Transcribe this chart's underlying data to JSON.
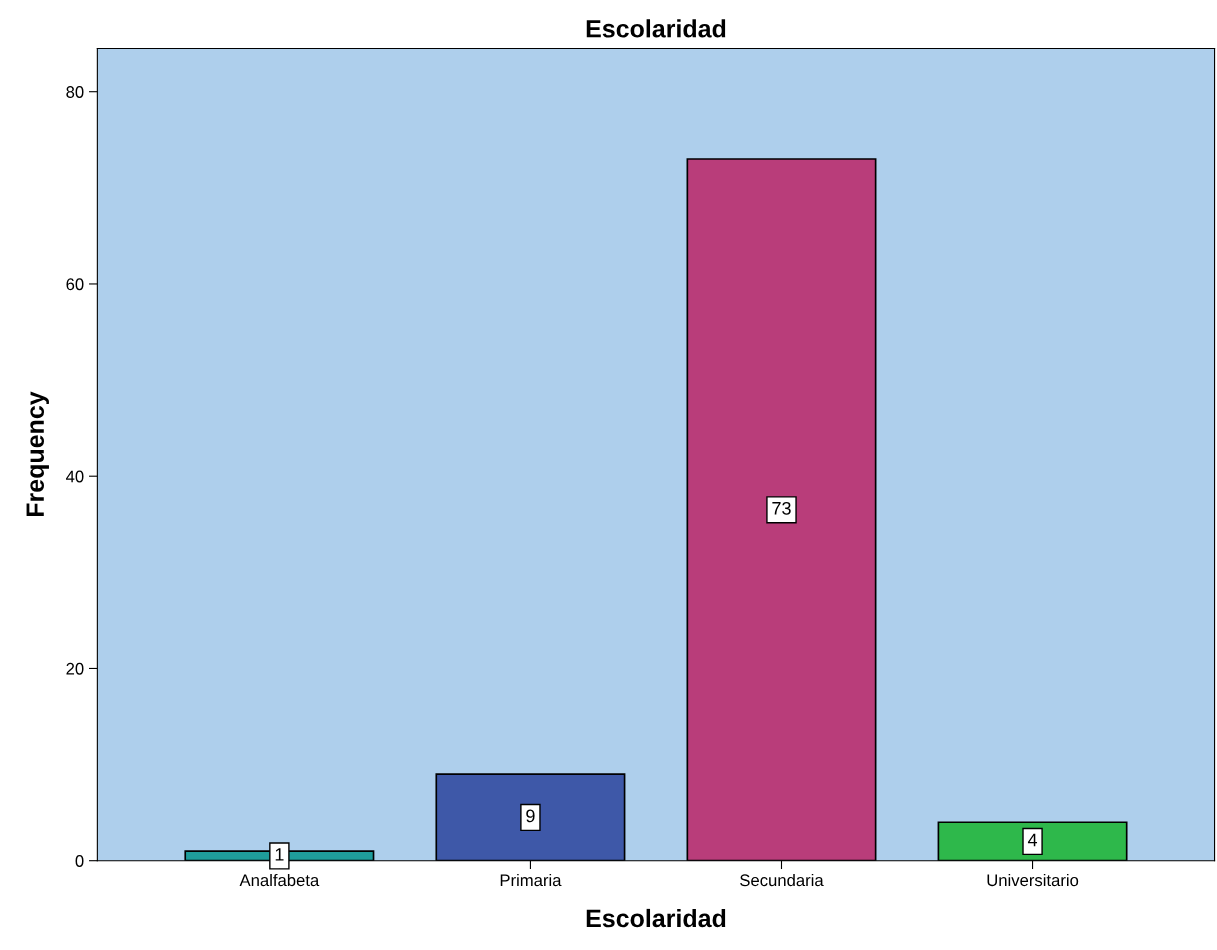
{
  "chart_data": {
    "type": "bar",
    "title": "Escolaridad",
    "xlabel": "Escolaridad",
    "ylabel": "Frequency",
    "categories": [
      "Analfabeta",
      "Primaria",
      "Secundaria",
      "Universitario"
    ],
    "values": [
      1,
      9,
      73,
      4
    ],
    "colors": [
      "#1f9d9b",
      "#3e58a8",
      "#b93d7a",
      "#2eb84b"
    ],
    "ylim": [
      0,
      84.5
    ],
    "yticks": [
      0,
      20,
      40,
      60,
      80
    ],
    "grid": false,
    "data_labels": true,
    "legend": false
  }
}
